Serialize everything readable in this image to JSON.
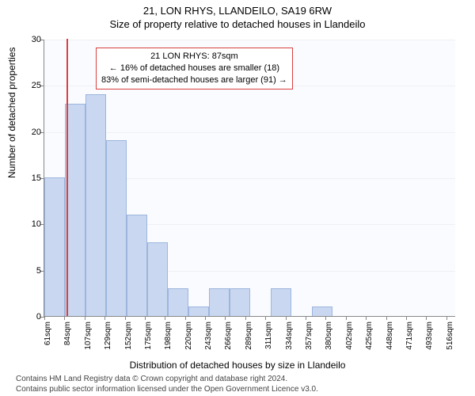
{
  "title_line1": "21, LON RHYS, LLANDEILO, SA19 6RW",
  "title_line2": "Size of property relative to detached houses in Llandeilo",
  "ylabel": "Number of detached properties",
  "xlabel": "Distribution of detached houses by size in Llandeilo",
  "footer_line1": "Contains HM Land Registry data © Crown copyright and database right 2024.",
  "footer_line2": "Contains public sector information licensed under the Open Government Licence v3.0.",
  "chart": {
    "type": "histogram",
    "background_color": "#fafbfe",
    "grid_color": "#eef0f5",
    "axis_color": "#888888",
    "ylim": [
      0,
      30
    ],
    "yticks": [
      0,
      5,
      10,
      15,
      20,
      25,
      30
    ],
    "x_start": 61,
    "x_end": 527,
    "xtick_step": 22.75,
    "xtick_labels": [
      "61sqm",
      "84sqm",
      "107sqm",
      "129sqm",
      "152sqm",
      "175sqm",
      "198sqm",
      "220sqm",
      "243sqm",
      "266sqm",
      "289sqm",
      "311sqm",
      "334sqm",
      "357sqm",
      "380sqm",
      "402sqm",
      "425sqm",
      "448sqm",
      "471sqm",
      "493sqm",
      "516sqm"
    ],
    "bar_color": "#c9d8f0",
    "bar_border": "#9db5dd",
    "bar_values": [
      15,
      23,
      24,
      19,
      11,
      8,
      3,
      1,
      3,
      3,
      0,
      3,
      0,
      1,
      0,
      0,
      0,
      0,
      0,
      0
    ],
    "marker_position": 87,
    "marker_color": "#d94040",
    "annotation": {
      "line1": "21 LON RHYS: 87sqm",
      "line2": "← 16% of detached houses are smaller (18)",
      "line3": "83% of semi-detached houses are larger (91) →",
      "border_color": "#d94040"
    }
  }
}
